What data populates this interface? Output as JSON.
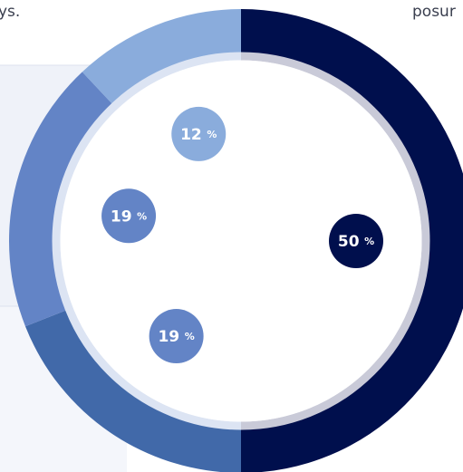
{
  "chart_data": {
    "type": "donut",
    "fragments": [
      "ys.",
      "posur"
    ],
    "values": [
      50,
      19,
      19,
      12
    ],
    "colors": [
      "#000f4d",
      "#4169a9",
      "#6384c6",
      "#8aacdc"
    ],
    "unit": "%"
  }
}
